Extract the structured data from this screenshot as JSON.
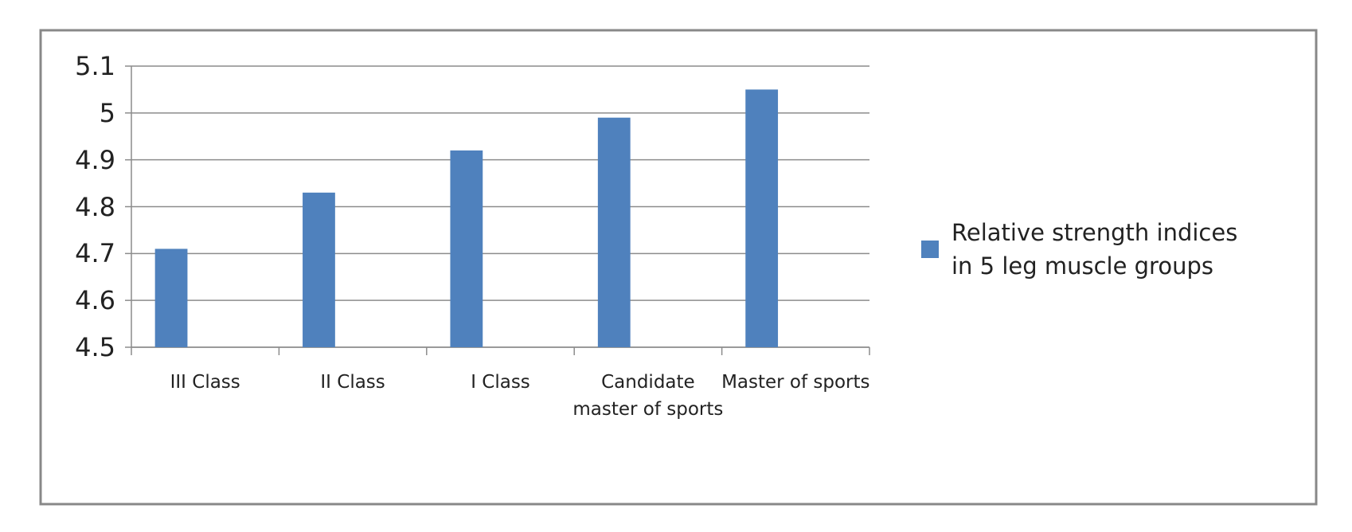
{
  "chart_data": {
    "type": "bar",
    "categories": [
      "III Class",
      "II Class",
      "I Class",
      "Candidate master of sports",
      "Master of sports"
    ],
    "series": [
      {
        "name": "Relative strength indices in 5 leg muscle groups",
        "color": "#4f81bd",
        "values": [
          4.71,
          4.83,
          4.92,
          4.99,
          5.05
        ]
      }
    ],
    "ylim": [
      4.5,
      5.1
    ],
    "yticks": [
      4.5,
      4.6,
      4.7,
      4.8,
      4.9,
      5,
      5.1
    ],
    "grid": true,
    "legend": "right"
  }
}
